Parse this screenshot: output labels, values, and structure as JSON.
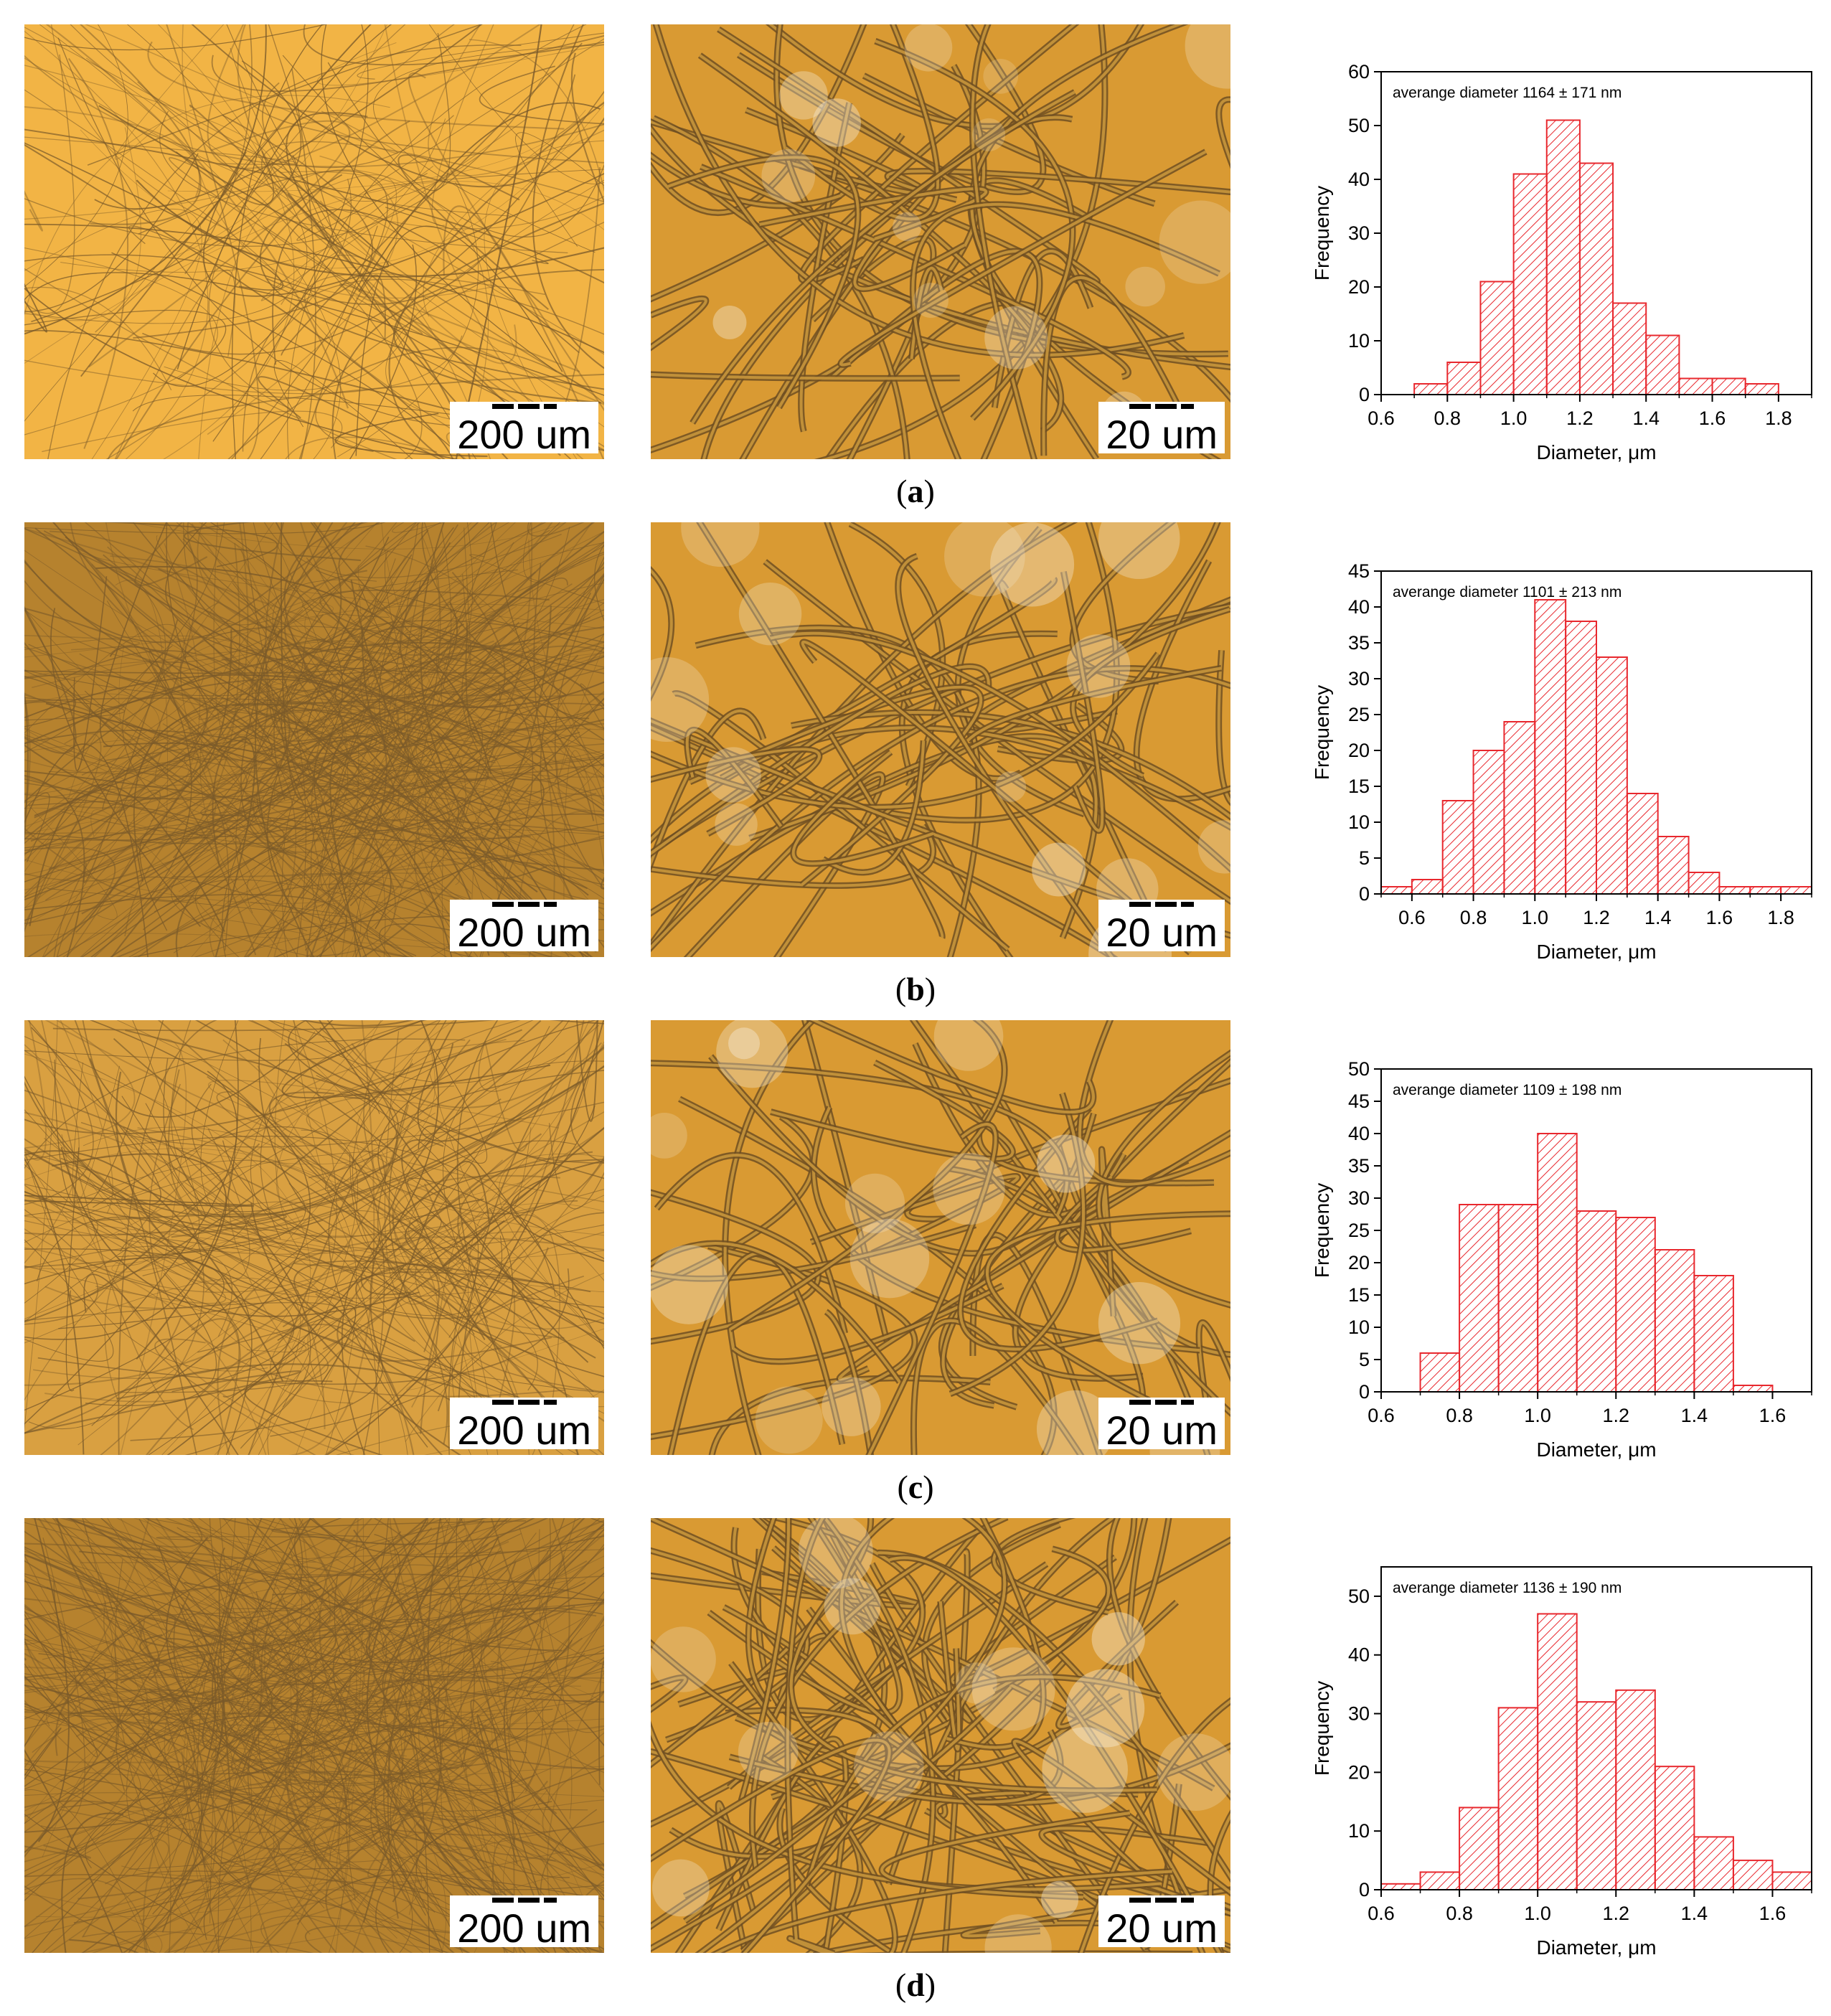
{
  "figure": {
    "rows": [
      {
        "label_open": "(",
        "label_letter": "a",
        "label_close": ")",
        "low_mag_scale": "200 um",
        "high_mag_scale": "20 um",
        "low_mag_tone": "light",
        "high_mag_tone": "light"
      },
      {
        "label_open": "(",
        "label_letter": "b",
        "label_close": ")",
        "low_mag_scale": "200 um",
        "high_mag_scale": "20 um",
        "low_mag_tone": "dark",
        "high_mag_tone": "light"
      },
      {
        "label_open": "(",
        "label_letter": "c",
        "label_close": ")",
        "low_mag_scale": "200 um",
        "high_mag_scale": "20 um",
        "low_mag_tone": "medium",
        "high_mag_tone": "light"
      },
      {
        "label_open": "(",
        "label_letter": "d",
        "label_close": ")",
        "low_mag_scale": "200 um",
        "high_mag_scale": "20 um",
        "low_mag_tone": "dark",
        "high_mag_tone": "dense"
      }
    ],
    "colors": {
      "bar_stroke": "#e8282e",
      "bar_hatch": "#e8282e",
      "axis": "#000000",
      "micro_light": "#f2b445",
      "micro_dark": "#b6822e",
      "fiber": "#7a5a2a",
      "fiber_glare": "#f6efe0"
    }
  },
  "chart_data": [
    {
      "type": "bar",
      "title": "",
      "annotation": "averange diameter 1164 ± 171 nm",
      "xlabel": "Diameter, μm",
      "ylabel": "Frequency",
      "xlim": [
        0.6,
        1.9
      ],
      "ylim": [
        0,
        60
      ],
      "xticks": [
        "0.6",
        "0.8",
        "1.0",
        "1.2",
        "1.4",
        "1.6",
        "1.8"
      ],
      "yticks": [
        "0",
        "10",
        "20",
        "30",
        "40",
        "50",
        "60"
      ],
      "bin_width": 0.1,
      "bin_starts": [
        0.7,
        0.8,
        0.9,
        1.0,
        1.1,
        1.2,
        1.3,
        1.4,
        1.5,
        1.6,
        1.7
      ],
      "values": [
        2,
        6,
        21,
        41,
        51,
        43,
        17,
        11,
        3,
        3,
        2
      ]
    },
    {
      "type": "bar",
      "title": "",
      "annotation": "averange diameter 1101 ± 213 nm",
      "xlabel": "Diameter, μm",
      "ylabel": "Frequency",
      "xlim": [
        0.5,
        1.9
      ],
      "ylim": [
        0,
        45
      ],
      "xticks": [
        "0.6",
        "0.8",
        "1.0",
        "1.2",
        "1.4",
        "1.6",
        "1.8"
      ],
      "yticks": [
        "0",
        "5",
        "10",
        "15",
        "20",
        "25",
        "30",
        "35",
        "40",
        "45"
      ],
      "bin_width": 0.1,
      "bin_starts": [
        0.5,
        0.6,
        0.7,
        0.8,
        0.9,
        1.0,
        1.1,
        1.2,
        1.3,
        1.4,
        1.5,
        1.6,
        1.7,
        1.8
      ],
      "values": [
        1,
        2,
        13,
        20,
        24,
        41,
        38,
        33,
        14,
        8,
        3,
        1,
        1,
        1
      ]
    },
    {
      "type": "bar",
      "title": "",
      "annotation": "averange diameter 1109 ± 198 nm",
      "xlabel": "Diameter, μm",
      "ylabel": "Frequency",
      "xlim": [
        0.6,
        1.7
      ],
      "ylim": [
        0,
        50
      ],
      "xticks": [
        "0.6",
        "0.8",
        "1.0",
        "1.2",
        "1.4",
        "1.6"
      ],
      "yticks": [
        "0",
        "5",
        "10",
        "15",
        "20",
        "25",
        "30",
        "35",
        "40",
        "45",
        "50"
      ],
      "bin_width": 0.1,
      "bin_starts": [
        0.7,
        0.8,
        0.9,
        1.0,
        1.1,
        1.2,
        1.3,
        1.4,
        1.5
      ],
      "values": [
        6,
        29,
        29,
        40,
        28,
        27,
        22,
        18,
        1
      ]
    },
    {
      "type": "bar",
      "title": "",
      "annotation": "averange diameter 1136 ± 190 nm",
      "xlabel": "Diameter, μm",
      "ylabel": "Frequency",
      "xlim": [
        0.6,
        1.7
      ],
      "ylim": [
        0,
        55
      ],
      "xticks": [
        "0.6",
        "0.8",
        "1.0",
        "1.2",
        "1.4",
        "1.6"
      ],
      "yticks": [
        "0",
        "10",
        "20",
        "30",
        "40",
        "50"
      ],
      "bin_width": 0.1,
      "bin_starts": [
        0.6,
        0.7,
        0.8,
        0.9,
        1.0,
        1.1,
        1.2,
        1.3,
        1.4,
        1.5,
        1.6
      ],
      "values": [
        1,
        3,
        14,
        31,
        47,
        32,
        34,
        21,
        9,
        5,
        3
      ]
    }
  ]
}
